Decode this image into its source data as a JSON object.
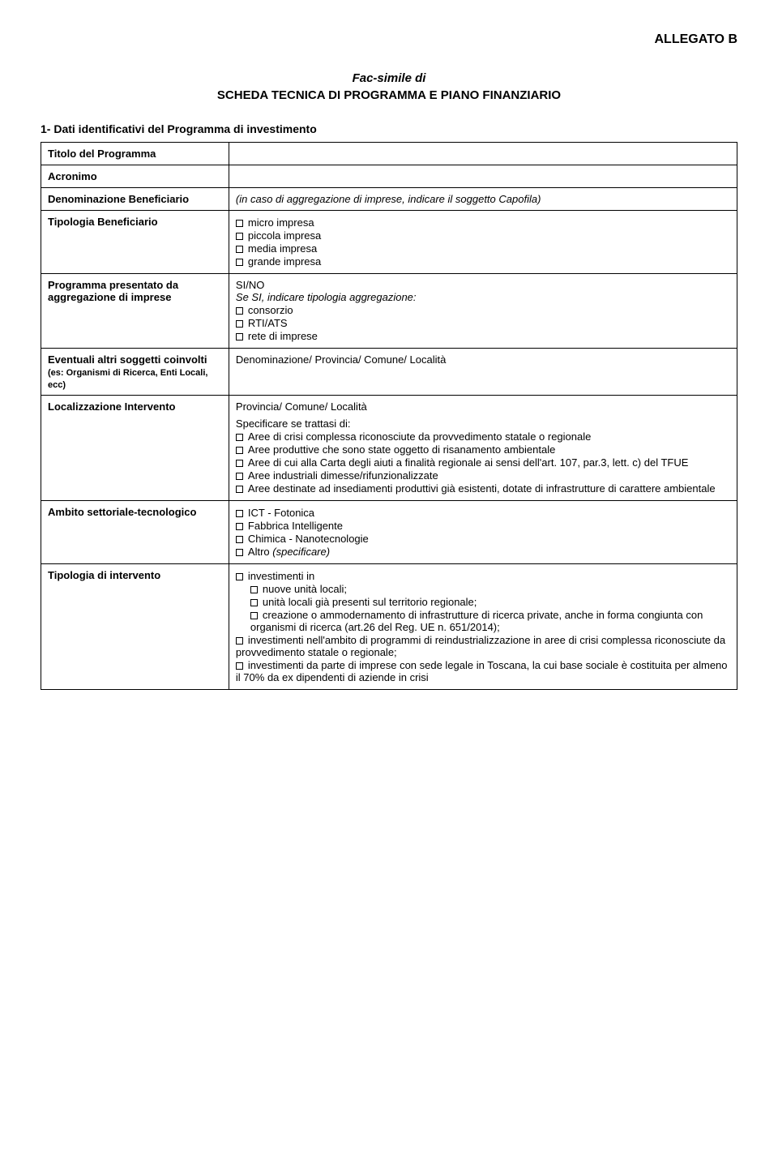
{
  "header": {
    "allegato": "ALLEGATO B",
    "facsimile": "Fac-simile di",
    "title": "SCHEDA TECNICA DI PROGRAMMA E PIANO FINANZIARIO"
  },
  "section1": {
    "title": "1- Dati identificativi del Programma di investimento"
  },
  "rows": {
    "titolo": {
      "label": "Titolo del Programma"
    },
    "acronimo": {
      "label": "Acronimo"
    },
    "denominazione": {
      "label": "Denominazione Beneficiario",
      "value": "(in caso di aggregazione di imprese, indicare il soggetto Capofila)"
    },
    "tipologia_ben": {
      "label": "Tipologia Beneficiario",
      "opts": [
        "micro impresa",
        "piccola impresa",
        "media impresa",
        "grande impresa"
      ]
    },
    "programma_pres": {
      "label": "Programma presentato da aggregazione di imprese",
      "sino": "SI/NO",
      "seSi": "Se SI, indicare tipologia aggregazione:",
      "opts": [
        "consorzio",
        "RTI/ATS",
        "rete di imprese"
      ]
    },
    "eventuali": {
      "label_main": "Eventuali altri soggetti coinvolti ",
      "label_note": "(es: Organismi di Ricerca, Enti Locali, ecc)",
      "value": "Denominazione/ Provincia/ Comune/ Località"
    },
    "localizzazione": {
      "label": "Localizzazione Intervento",
      "line1": "Provincia/ Comune/ Località",
      "specificare": "Specificare se trattasi di:",
      "opts": [
        "Aree di crisi complessa riconosciute da provvedimento statale o regionale",
        "Aree produttive che sono state oggetto di risanamento ambientale",
        "Aree di cui alla Carta degli aiuti a finalità regionale ai sensi dell'art. 107, par.3, lett. c) del TFUE",
        "Aree industriali dimesse/rifunzionalizzate",
        "Aree destinate ad insediamenti produttivi già esistenti, dotate di infrastrutture di carattere ambientale"
      ]
    },
    "ambito": {
      "label": "Ambito settoriale-tecnologico",
      "opts": [
        "ICT - Fotonica",
        "Fabbrica Intelligente",
        "Chimica - Nanotecnologie"
      ],
      "altro_label": "Altro ",
      "altro_spec": "(specificare)"
    },
    "tipologia_int": {
      "label": "Tipologia di intervento",
      "invest_in": "investimenti in",
      "sub": [
        "nuove unità locali;",
        "unità locali già presenti sul territorio regionale;",
        "creazione o ammodernamento di infrastrutture di ricerca private, anche in forma congiunta con organismi di ricerca (art.26 del Reg. UE n. 651/2014);"
      ],
      "opt2": "investimenti nell'ambito di programmi di reindustrializzazione in aree di crisi complessa riconosciute da provvedimento statale o regionale;",
      "opt3": "investimenti da parte di imprese con sede legale in Toscana, la cui base sociale è costituita per almeno il 70% da ex dipendenti di aziende in crisi"
    }
  }
}
